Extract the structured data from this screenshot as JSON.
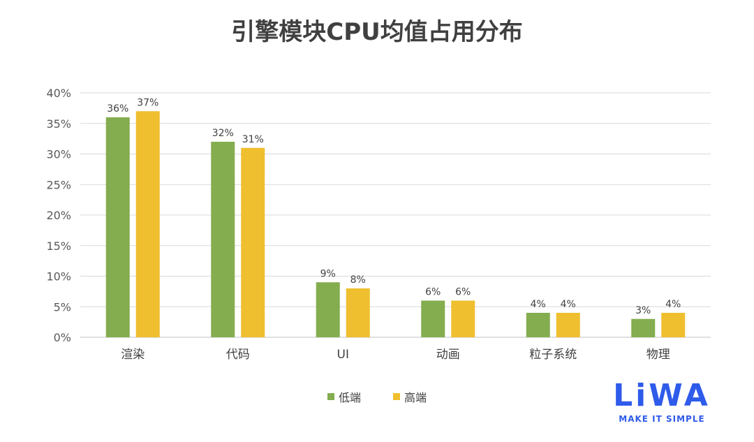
{
  "chart_data": {
    "type": "bar",
    "title": "引擎模块CPU均值占用分布",
    "categories": [
      "渲染",
      "代码",
      "UI",
      "动画",
      "粒子系统",
      "物理"
    ],
    "series": [
      {
        "name": "低端",
        "color": "#84ad4f",
        "values": [
          36,
          32,
          9,
          6,
          4,
          3
        ],
        "labels": [
          "36%",
          "32%",
          "9%",
          "6%",
          "4%",
          "3%"
        ]
      },
      {
        "name": "高端",
        "color": "#efbf2f",
        "values": [
          37,
          31,
          8,
          6,
          4,
          4
        ],
        "labels": [
          "37%",
          "31%",
          "8%",
          "6%",
          "4%",
          "4%"
        ]
      }
    ],
    "ylim": [
      0,
      40
    ],
    "yticks": [
      "0%",
      "5%",
      "10%",
      "15%",
      "20%",
      "25%",
      "30%",
      "35%",
      "40%"
    ],
    "grid": true,
    "legend_position": "bottom"
  },
  "logo": {
    "word": "LiWA",
    "tagline": "MAKE IT SIMPLE"
  }
}
